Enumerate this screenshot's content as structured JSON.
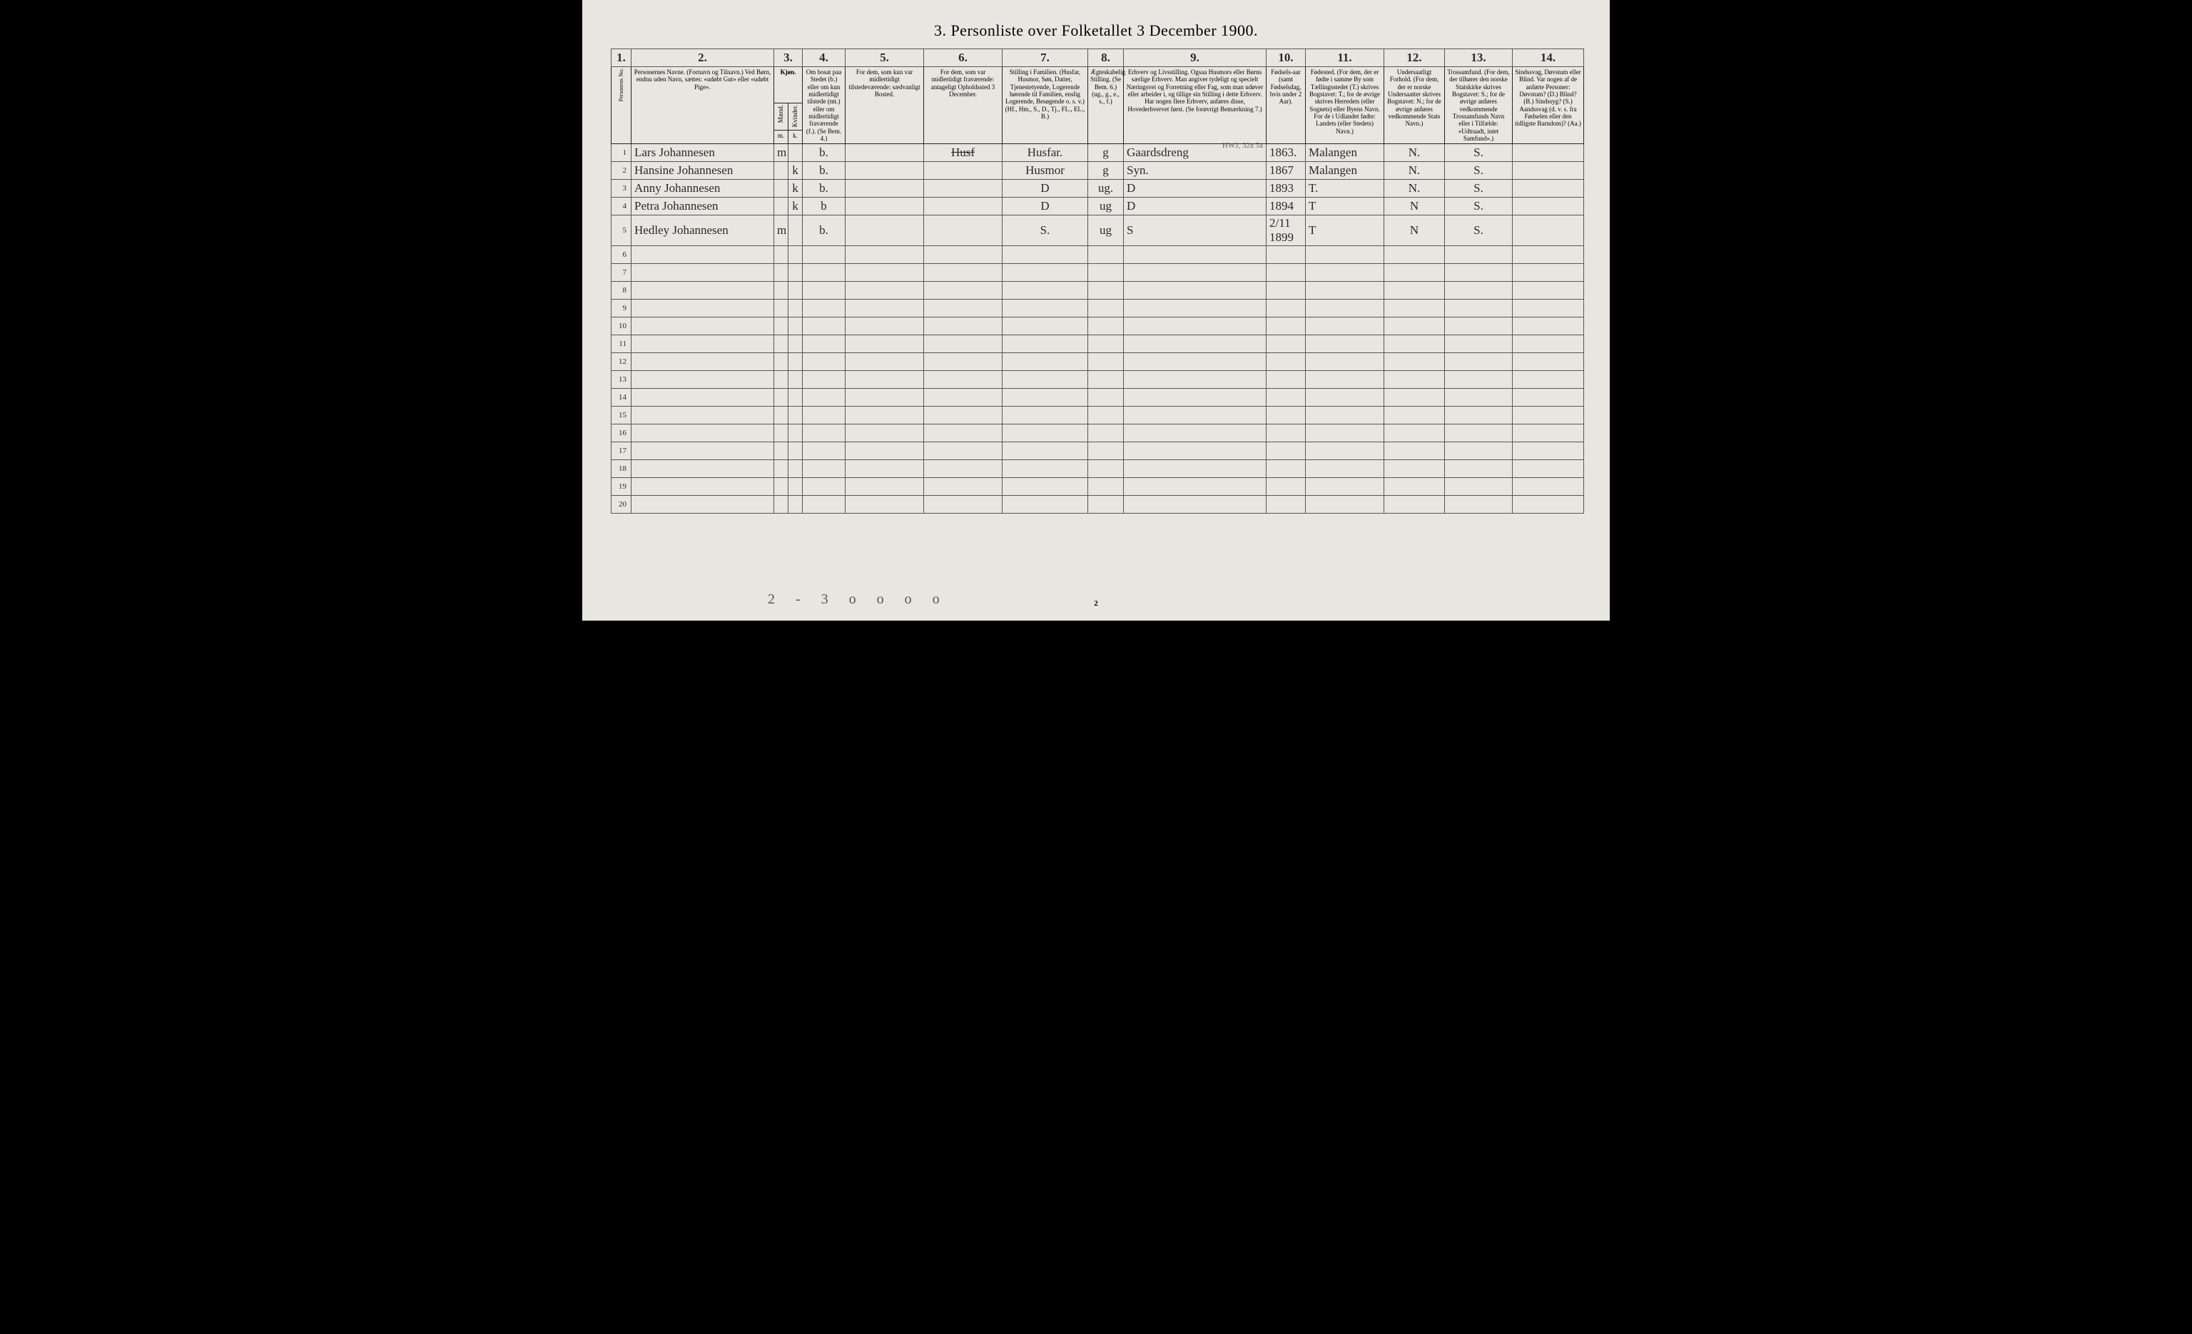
{
  "title": "3. Personliste over Folketallet 3 December 1900.",
  "colnums": [
    "1.",
    "2.",
    "3.",
    "4.",
    "5.",
    "6.",
    "7.",
    "8.",
    "9.",
    "10.",
    "11.",
    "12.",
    "13.",
    "14."
  ],
  "headers": {
    "c1": "Personens No.",
    "c2": "Personernes Navne.\n(Fornavn og Tilnavn.)\nVed Børn, endnu uden Navn, sættes: «udøbt Gut» eller «udøbt Pige».",
    "c3": "Kjøn.",
    "c3a": "Mænd.",
    "c3b": "Kvinder.",
    "c3c": "m.",
    "c3d": "k.",
    "c4": "Om bosat paa Stedet (b.) eller om kun midlertidigt tilstede (mt.) eller om midlertidigt fraværende (f.). (Se Bem. 4.)",
    "c5": "For dem, som kun var midlertidigt tilstedeværende:\nsædvanligt Bosted.",
    "c6": "For dem, som var midlertidigt fraværende:\nantageligt Opholdssted 3 December.",
    "c7": "Stilling i Familien.\n(Husfar, Husmor, Søn, Datter, Tjenestetyende, Logerende hørende til Familien, enslig Logerende, Besøgende o. s. v.)\n(Hf., Hm., S., D., Tj., FL., EL., B.)",
    "c8": "Ægteskabelig Stilling.\n(Se Bem. 6.)\n(ug., g., e., s., f.)",
    "c9": "Erhverv og Livsstilling.\nOgsaa Husmors eller Børns særlige Erhverv. Man angiver tydeligt og specielt Næringsvei og Forretning eller Fag, som man udøver eller arbeider i, og tillige sin Stilling i dette Erhverv. Har nogen flere Erhverv, anføres disse, Hovederhvervet først.\n(Se forøvrigt Bemærkning 7.)",
    "c10": "Fødsels-aar\n(samt Fødselsdag, hvis under 2 Aar).",
    "c11": "Fødested.\n(For dem, der er fødte i samme By som Tællingsstedet (T.) skrives Bogstavet: T.; for de øvrige skrives Herredets (eller Sognets) eller Byens Navn. For de i Udlandet fødte: Landets (eller Stedets) Navn.)",
    "c12": "Undersaatligt Forhold.\n(For dem, der er norske Undersaatter skrives Bogstavet: N.; for de øvrige anføres vedkommende Stats Navn.)",
    "c13": "Trossamfund.\n(For dem, der tilhører den norske Statskirke skrives Bogstavet: S.; for de øvrige anføres vedkommende Trossamfunds Navn eller i Tilfælde: «Udtraadt, intet Samfund».)",
    "c14": "Sindssvag, Døvstum eller Blind.\nVar nogen af de anførte Personer: Døvstum? (D.) Blind? (B.) Sindssyg? (S.) Aandssvag (d. v. s. fra Fødselen eller den tidligste Barndom)? (Aa.)"
  },
  "rows": [
    {
      "n": "1",
      "name": "Lars Johannesen",
      "m": "m",
      "k": "",
      "b": "b.",
      "c5": "",
      "c6": "",
      "c6strike": "Husf",
      "fam": "Husfar.",
      "eg": "g",
      "erhv": "Gaardsdreng",
      "annot": "HWJ, 32a  5a",
      "aar": "1863.",
      "fsted": "Malangen",
      "us": "N.",
      "tro": "S.",
      "c14": ""
    },
    {
      "n": "2",
      "name": "Hansine Johannesen",
      "m": "",
      "k": "k",
      "b": "b.",
      "c5": "",
      "c6": "",
      "fam": "Husmor",
      "eg": "g",
      "erhv": "Syn.",
      "aar": "1867",
      "fsted": "Malangen",
      "us": "N.",
      "tro": "S.",
      "c14": ""
    },
    {
      "n": "3",
      "name": "Anny Johannesen",
      "m": "",
      "k": "k",
      "b": "b.",
      "c5": "",
      "c6": "",
      "fam": "D",
      "eg": "ug.",
      "erhv": "D",
      "aar": "1893",
      "fsted": "T.",
      "us": "N.",
      "tro": "S.",
      "c14": ""
    },
    {
      "n": "4",
      "name": "Petra Johannesen",
      "m": "",
      "k": "k",
      "b": "b",
      "c5": "",
      "c6": "",
      "fam": "D",
      "eg": "ug",
      "erhv": "D",
      "aar": "1894",
      "fsted": "T",
      "us": "N",
      "tro": "S.",
      "c14": ""
    },
    {
      "n": "5",
      "name": "Hedley Johannesen",
      "m": "m",
      "k": "",
      "b": "b.",
      "c5": "",
      "c6": "",
      "fam": "S.",
      "eg": "ug",
      "erhv": "S",
      "aar": "2/11 1899",
      "fsted": "T",
      "us": "N",
      "tro": "S.",
      "c14": ""
    }
  ],
  "empty_rows": [
    "6",
    "7",
    "8",
    "9",
    "10",
    "11",
    "12",
    "13",
    "14",
    "15",
    "16",
    "17",
    "18",
    "19",
    "20"
  ],
  "footer_scribble": "2 - 3   o o   o o",
  "footer_pagenum": "2",
  "colwidths": {
    "c1": "28px",
    "c2": "200px",
    "c3a": "20px",
    "c3b": "20px",
    "c4": "60px",
    "c5": "110px",
    "c6": "110px",
    "c7": "120px",
    "c8": "50px",
    "c9": "200px",
    "c10": "55px",
    "c11": "110px",
    "c12": "85px",
    "c13": "95px",
    "c14": "100px"
  },
  "colors": {
    "page_bg": "#e8e6e0",
    "ink": "#2a2a2a",
    "rule": "#222"
  }
}
